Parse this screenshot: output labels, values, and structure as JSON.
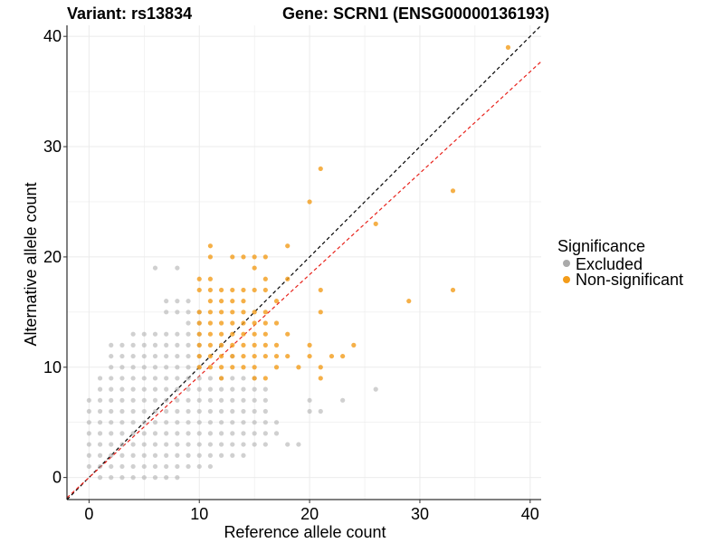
{
  "chart_data": {
    "type": "scatter",
    "title_left": "Variant: rs13834",
    "title_right": "Gene: SCRN1 (ENSG00000136193)",
    "xlabel": "Reference allele count",
    "ylabel": "Alternative allele count",
    "xlim": [
      -2,
      41
    ],
    "ylim": [
      -2,
      41
    ],
    "xticks": [
      0,
      10,
      20,
      30,
      40
    ],
    "yticks": [
      0,
      10,
      20,
      30,
      40
    ],
    "grid": true,
    "legend": {
      "title": "Significance",
      "position": "right",
      "entries": [
        {
          "label": "Excluded",
          "color": "#aaaaaa"
        },
        {
          "label": "Non-significant",
          "color": "#f39c1a"
        }
      ]
    },
    "reference_lines": [
      {
        "name": "identity",
        "slope": 1.0,
        "intercept": 0,
        "color": "#000000",
        "dash": true
      },
      {
        "name": "fit",
        "slope": 0.92,
        "intercept": 0,
        "color": "#e8231c",
        "dash": true
      }
    ],
    "excluded_ranges": [
      [
        0,
        1,
        7
      ],
      [
        1,
        0,
        9
      ],
      [
        2,
        0,
        12
      ],
      [
        3,
        0,
        11
      ],
      [
        4,
        0,
        13
      ],
      [
        5,
        0,
        13
      ],
      [
        6,
        0,
        13
      ],
      [
        7,
        0,
        13
      ],
      [
        8,
        0,
        13
      ],
      [
        9,
        1,
        13
      ],
      [
        10,
        1,
        9
      ],
      [
        11,
        1,
        9
      ],
      [
        12,
        2,
        9
      ],
      [
        13,
        2,
        9
      ],
      [
        14,
        2,
        9
      ],
      [
        15,
        3,
        9
      ],
      [
        16,
        3,
        8
      ]
    ],
    "excluded_extra": [
      [
        6,
        19
      ],
      [
        8,
        19
      ],
      [
        7,
        16
      ],
      [
        8,
        16
      ],
      [
        9,
        16
      ],
      [
        7,
        15
      ],
      [
        8,
        15
      ],
      [
        9,
        15
      ],
      [
        10,
        15
      ],
      [
        9,
        14
      ],
      [
        10,
        14
      ],
      [
        10,
        13
      ],
      [
        10,
        12
      ],
      [
        10,
        11
      ],
      [
        10,
        10
      ],
      [
        3,
        12
      ],
      [
        17,
        5
      ],
      [
        17,
        4
      ],
      [
        18,
        3
      ],
      [
        19,
        3
      ],
      [
        20,
        6
      ],
      [
        20,
        7
      ],
      [
        21,
        6
      ],
      [
        23,
        7
      ],
      [
        26,
        8
      ],
      [
        13,
        11
      ],
      [
        12,
        12
      ]
    ],
    "nonsig_ranges": [
      [
        10,
        10,
        15
      ],
      [
        11,
        10,
        16
      ],
      [
        12,
        10,
        16
      ],
      [
        13,
        10,
        16
      ],
      [
        14,
        10,
        16
      ],
      [
        15,
        10,
        15
      ],
      [
        16,
        11,
        15
      ],
      [
        17,
        10,
        12
      ]
    ],
    "nonsig_extra": [
      [
        11,
        21
      ],
      [
        11,
        20
      ],
      [
        11,
        18
      ],
      [
        10,
        18
      ],
      [
        12,
        17
      ],
      [
        13,
        20
      ],
      [
        14,
        20
      ],
      [
        15,
        20
      ],
      [
        15,
        19
      ],
      [
        16,
        20
      ],
      [
        16,
        18
      ],
      [
        18,
        21
      ],
      [
        18,
        18
      ],
      [
        13,
        17
      ],
      [
        10,
        17
      ],
      [
        11,
        17
      ],
      [
        14,
        17
      ],
      [
        15,
        17
      ],
      [
        16,
        17
      ],
      [
        18,
        13
      ],
      [
        18,
        11
      ],
      [
        20,
        12
      ],
      [
        20,
        11
      ],
      [
        21,
        10
      ],
      [
        21,
        9
      ],
      [
        22,
        11
      ],
      [
        23,
        11
      ],
      [
        24,
        12
      ],
      [
        21,
        15
      ],
      [
        21,
        17
      ],
      [
        20,
        25
      ],
      [
        21,
        28
      ],
      [
        26,
        23
      ],
      [
        29,
        16
      ],
      [
        33,
        26
      ],
      [
        33,
        17
      ],
      [
        38,
        39
      ],
      [
        17,
        16
      ],
      [
        17,
        14
      ],
      [
        19,
        10
      ],
      [
        12,
        9
      ],
      [
        15,
        9
      ],
      [
        16,
        9
      ]
    ]
  }
}
